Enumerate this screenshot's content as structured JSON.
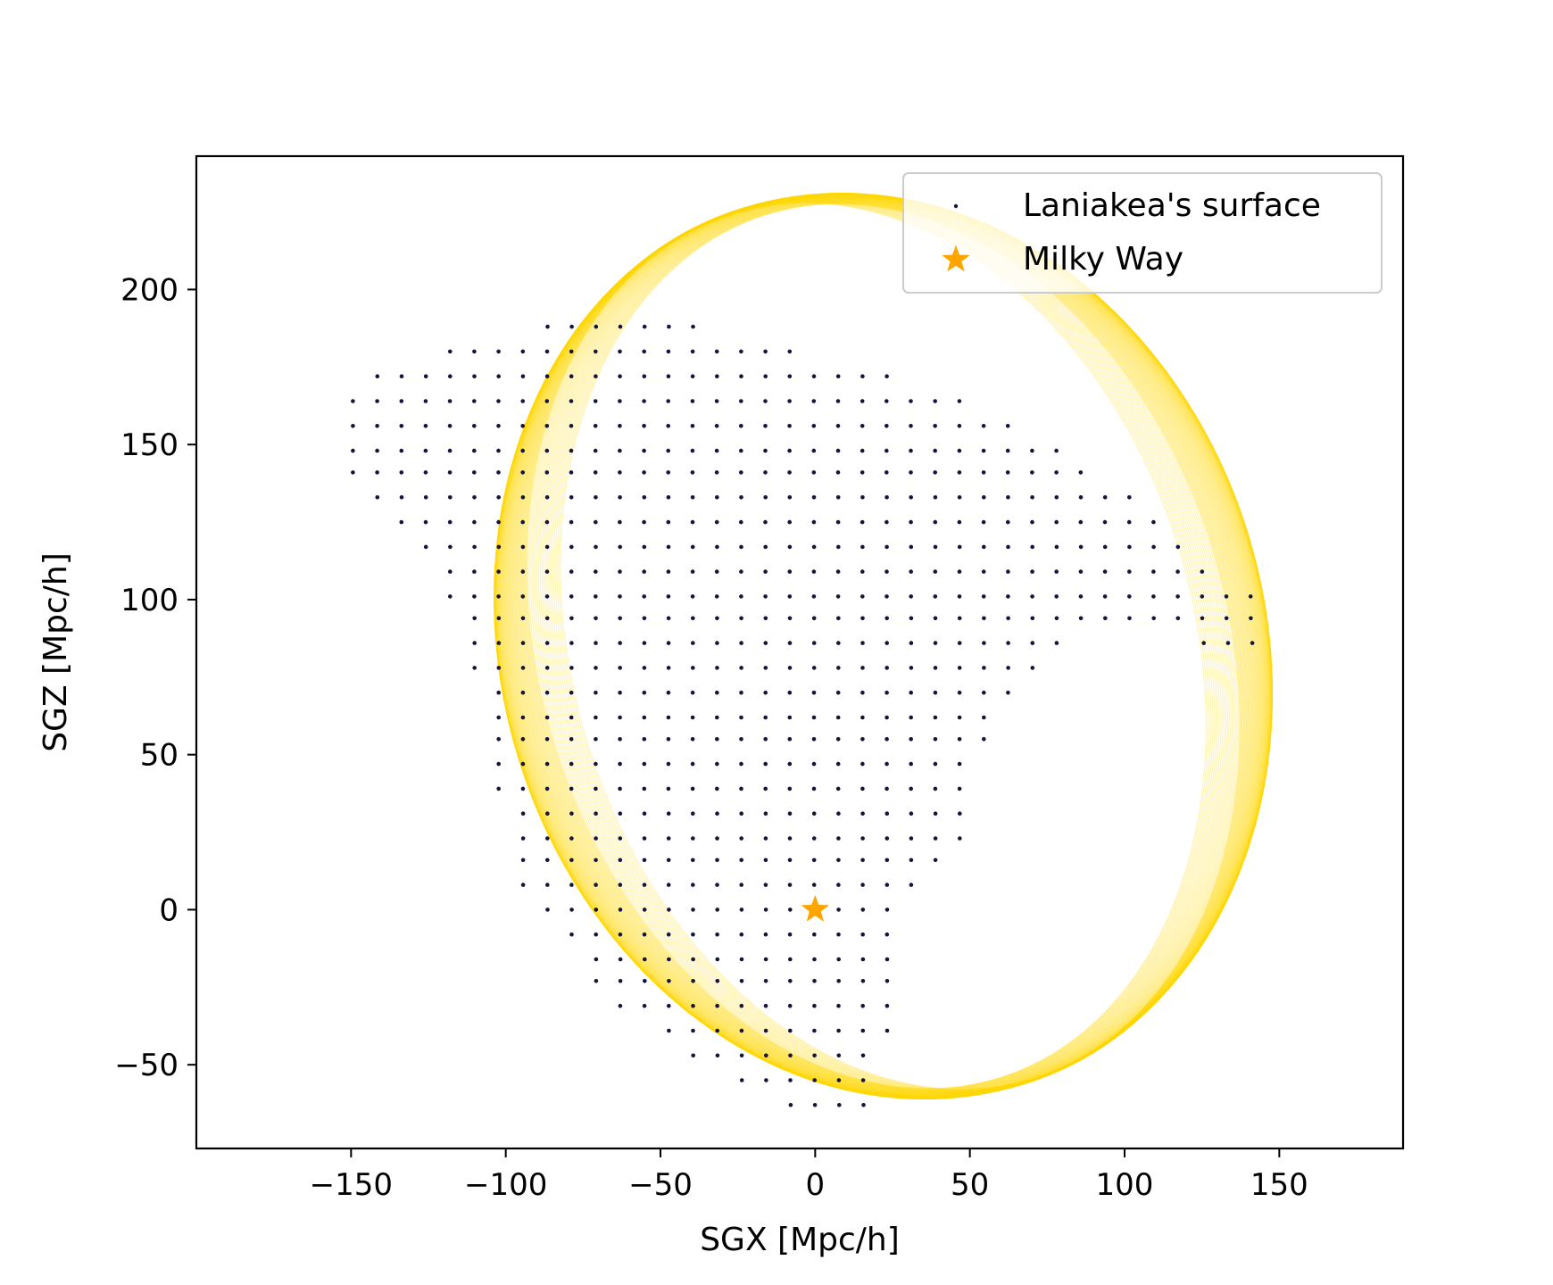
{
  "chart_data": {
    "type": "scatter",
    "xlabel": "SGX [Mpc/h]",
    "ylabel": "SGZ [Mpc/h]",
    "xlim": [
      -200,
      190
    ],
    "ylim": [
      -77,
      243
    ],
    "xticks": [
      -150,
      -100,
      -50,
      0,
      50,
      100,
      150
    ],
    "yticks": [
      -50,
      0,
      50,
      100,
      150,
      200
    ],
    "grid": false,
    "legend_position": "top-right",
    "ellipse": {
      "color": "#FFD700",
      "center": [
        22,
        85
      ],
      "semi_major": 148,
      "semi_minor": 123,
      "rotation_deg": -17
    },
    "series": [
      {
        "name": "Laniakea's surface",
        "marker": "dot",
        "color": "#14143c",
        "grid_spacing": [
          7.84,
          7.84
        ],
        "x_origin": -0.2,
        "y_origin": 0,
        "rows": [
          {
            "z": 188,
            "x_from": -86.5,
            "x_to": -39.4
          },
          {
            "z": 180,
            "x_from": -118.0,
            "x_to": -7.9
          },
          {
            "z": 172,
            "x_from": -141.5,
            "x_to": 23.5
          },
          {
            "z": 164,
            "x_from": -149.4,
            "x_to": 47.1
          },
          {
            "z": 156,
            "x_from": -149.4,
            "x_to": 62.8
          },
          {
            "z": 148,
            "x_from": -149.4,
            "x_to": 78.5
          },
          {
            "z": 141,
            "x_from": -149.4,
            "x_to": 86.4
          },
          {
            "z": 133,
            "x_from": -141.5,
            "x_to": 102.1
          },
          {
            "z": 125,
            "x_from": -133.7,
            "x_to": 109.9
          },
          {
            "z": 117,
            "x_from": -125.8,
            "x_to": 117.8
          },
          {
            "z": 109,
            "x_from": -118.0,
            "x_to": 125.6
          },
          {
            "z": 101,
            "x_from": -118.0,
            "x_to": 141.3
          },
          {
            "z": 94,
            "x_from": -110.1,
            "x_to": 141.3
          },
          {
            "z": 86,
            "x_from": -110.1,
            "x_to": 78.5
          },
          {
            "z": 86,
            "x_from": 125.6,
            "x_to": 141.3
          },
          {
            "z": 78,
            "x_from": -110.1,
            "x_to": 70.6
          },
          {
            "z": 70,
            "x_from": -102.3,
            "x_to": 62.8
          },
          {
            "z": 62,
            "x_from": -102.3,
            "x_to": 54.9
          },
          {
            "z": 55,
            "x_from": -102.3,
            "x_to": 54.9
          },
          {
            "z": 47,
            "x_from": -102.3,
            "x_to": 47.1
          },
          {
            "z": 39,
            "x_from": -102.3,
            "x_to": 47.1
          },
          {
            "z": 31,
            "x_from": -94.4,
            "x_to": 47.1
          },
          {
            "z": 23,
            "x_from": -94.4,
            "x_to": 47.1
          },
          {
            "z": 16,
            "x_from": -94.4,
            "x_to": 39.2
          },
          {
            "z": 8,
            "x_from": -94.4,
            "x_to": 31.4
          },
          {
            "z": 0,
            "x_from": -86.5,
            "x_to": 23.5
          },
          {
            "z": -8,
            "x_from": -78.7,
            "x_to": 23.5
          },
          {
            "z": -16,
            "x_from": -70.8,
            "x_to": 23.5
          },
          {
            "z": -23,
            "x_from": -70.8,
            "x_to": 23.5
          },
          {
            "z": -31,
            "x_from": -63.0,
            "x_to": 23.5
          },
          {
            "z": -39,
            "x_from": -47.3,
            "x_to": 23.5
          },
          {
            "z": -47,
            "x_from": -39.4,
            "x_to": 15.7
          },
          {
            "z": -55,
            "x_from": -23.7,
            "x_to": 15.7
          },
          {
            "z": -63,
            "x_from": -7.9,
            "x_to": 15.7
          }
        ]
      },
      {
        "name": "Milky Way",
        "marker": "star",
        "color": "#FFA500",
        "x": [
          0
        ],
        "y": [
          0
        ]
      }
    ]
  }
}
